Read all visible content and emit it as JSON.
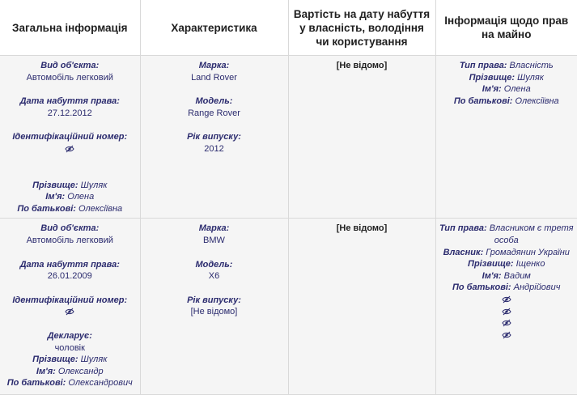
{
  "headers": {
    "general": "Загальна інформація",
    "characteristics": "Характеристика",
    "cost": "Вартість на дату набуття у власність, володіння чи користування",
    "rights": "Інформація щодо прав на майно"
  },
  "rows": [
    {
      "general": {
        "object_type_label": "Вид об'єкта:",
        "object_type_value": "Автомобіль легковий",
        "acq_date_label": "Дата набуття права:",
        "acq_date_value": "27.12.2012",
        "id_label": "Ідентифікаційний номер:",
        "surname_label": "Прізвище:",
        "surname_value": "Шуляк",
        "name_label": "Ім'я:",
        "name_value": "Олена",
        "patronymic_label": "По батькові:",
        "patronymic_value": "Олексіївна"
      },
      "characteristics": {
        "brand_label": "Марка:",
        "brand_value": "Land Rover",
        "model_label": "Модель:",
        "model_value": "Range Rover",
        "year_label": "Рік випуску:",
        "year_value": "2012"
      },
      "cost": "[Не відомо]",
      "rights": {
        "type_label": "Тип права:",
        "type_value": "Власність",
        "surname_label": "Прізвище:",
        "surname_value": "Шуляк",
        "name_label": "Ім'я:",
        "name_value": "Олена",
        "patronymic_label": "По батькові:",
        "patronymic_value": "Олексіївна"
      }
    },
    {
      "general": {
        "object_type_label": "Вид об'єкта:",
        "object_type_value": "Автомобіль легковий",
        "acq_date_label": "Дата набуття права:",
        "acq_date_value": "26.01.2009",
        "id_label": "Ідентифікаційний номер:",
        "declarant_label": "Декларує:",
        "declarant_value": "чоловік",
        "surname_label": "Прізвище:",
        "surname_value": "Шуляк",
        "name_label": "Ім'я:",
        "name_value": "Олександр",
        "patronymic_label": "По батькові:",
        "patronymic_value": "Олександрович"
      },
      "characteristics": {
        "brand_label": "Марка:",
        "brand_value": "BMW",
        "model_label": "Модель:",
        "model_value": "X6",
        "year_label": "Рік випуску:",
        "year_value": "[Не відомо]"
      },
      "cost": "[Не відомо]",
      "rights": {
        "type_label": "Тип права:",
        "type_value": "Власником є третя особа",
        "owner_label": "Власник:",
        "owner_value": "Громадянин України",
        "surname_label": "Прізвище:",
        "surname_value": "Іщенко",
        "name_label": "Ім'я:",
        "name_value": "Вадим",
        "patronymic_label": "По батькові:",
        "patronymic_value": "Андрійович"
      }
    }
  ],
  "icons": {
    "hidden_value": "eye-slash-icon"
  },
  "colors": {
    "label": "#2b2b6e",
    "header_text": "#1f1f1f",
    "cell_bg": "#f5f5f5",
    "border": "#d9d9d9"
  }
}
